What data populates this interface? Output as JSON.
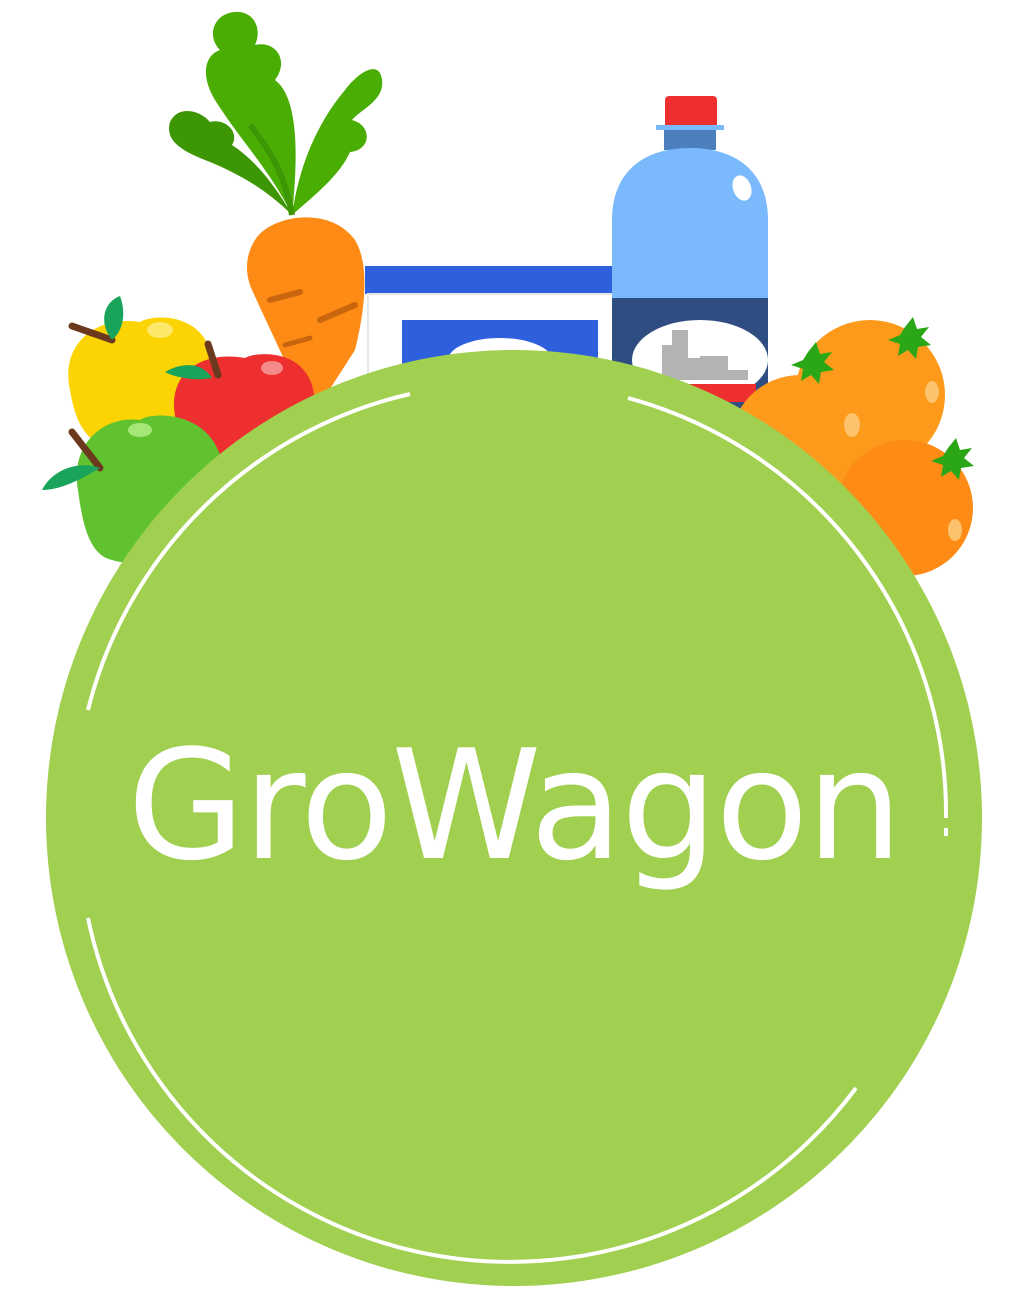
{
  "logo": {
    "brand_name": "GroWagon",
    "icons": [
      "carrot-icon",
      "apple-icon",
      "bottle-icon",
      "orange-icon",
      "food-box-icon"
    ],
    "colors": {
      "badge_green": "#a1cf50",
      "ring_white": "#ffffff",
      "text_white": "#ffffff",
      "carrot_orange": "#fd8b16",
      "leaf_green": "#4aad03",
      "apple_yellow": "#fdd403",
      "apple_red": "#ee2f2f",
      "apple_green": "#61c230",
      "bottle_blue": "#7ab9fc",
      "label_navy": "#2f4d80",
      "cap_red": "#ee2f2f",
      "box_blue": "#2e5fdc",
      "orange_fruit": "#fd9a1c"
    }
  }
}
